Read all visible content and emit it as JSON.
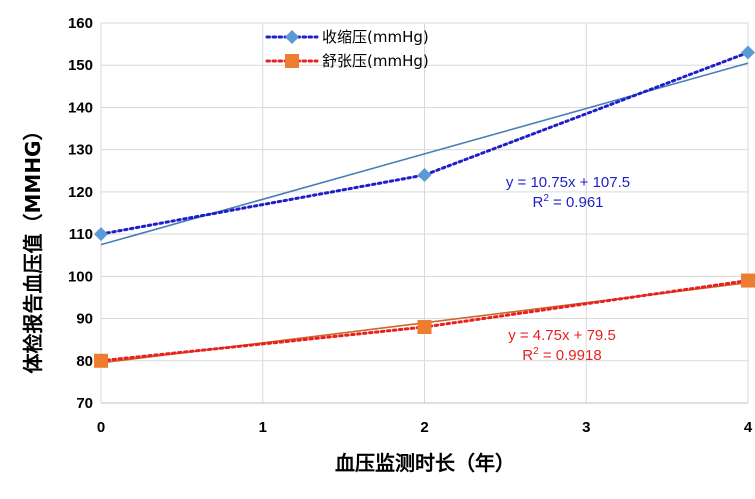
{
  "chart_data": {
    "type": "line",
    "xlabel": "血压监测时长（年）",
    "ylabel": "体检报告血压值（MMHG）",
    "x_ticks": [
      0,
      1,
      2,
      3,
      4
    ],
    "y_ticks": [
      70,
      80,
      90,
      100,
      110,
      120,
      130,
      140,
      150,
      160
    ],
    "xlim": [
      0,
      4
    ],
    "ylim": [
      70,
      160
    ],
    "grid": true,
    "legend_position": "top-center",
    "series": [
      {
        "name": "收缩压(mmHg)",
        "x": [
          0,
          2,
          4
        ],
        "values": [
          110,
          124,
          153
        ],
        "color": "#5b9bd5",
        "dot_color": "#1f1fc8",
        "marker": "diamond",
        "trendline": {
          "slope": 10.75,
          "intercept": 107.5,
          "color": "#4a7fb5"
        },
        "equation": "y = 10.75x + 107.5",
        "r2_label": "R",
        "r2_sup": "2",
        "r2_value": " = 0.961",
        "label_color": "#1f1fc8"
      },
      {
        "name": "舒张压(mmHg)",
        "x": [
          0,
          2,
          4
        ],
        "values": [
          80,
          88,
          99
        ],
        "color": "#ed7d31",
        "dot_color": "#e82020",
        "marker": "square",
        "trendline": {
          "slope": 4.75,
          "intercept": 79.5,
          "color": "#c8682a"
        },
        "equation": "y = 4.75x + 79.5",
        "r2_label": "R",
        "r2_sup": "2",
        "r2_value": " = 0.9918",
        "label_color": "#e82020"
      }
    ]
  }
}
